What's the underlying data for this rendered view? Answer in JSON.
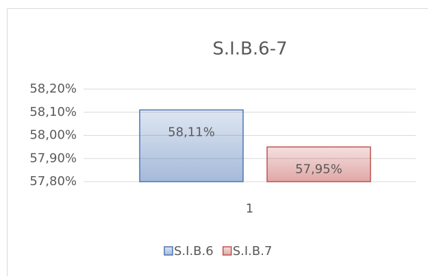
{
  "chart_data": {
    "type": "bar",
    "title": "S.I.B.6-7",
    "categories": [
      "1"
    ],
    "series": [
      {
        "name": "S.I.B.6",
        "color": "#4a74b4",
        "values": [
          58.11
        ],
        "value_labels": [
          "58,11%"
        ]
      },
      {
        "name": "S.I.B.7",
        "color": "#c0504d",
        "values": [
          57.95
        ],
        "value_labels": [
          "57,95%"
        ]
      }
    ],
    "ylim": [
      57.8,
      58.2
    ],
    "yticks": [
      {
        "value": 57.8,
        "label": "57,80%"
      },
      {
        "value": 57.9,
        "label": "57,90%"
      },
      {
        "value": 58.0,
        "label": "58,00%"
      },
      {
        "value": 58.1,
        "label": "58,10%"
      },
      {
        "value": 58.2,
        "label": "58,20%"
      }
    ],
    "grid": true,
    "legend": "bottom"
  }
}
